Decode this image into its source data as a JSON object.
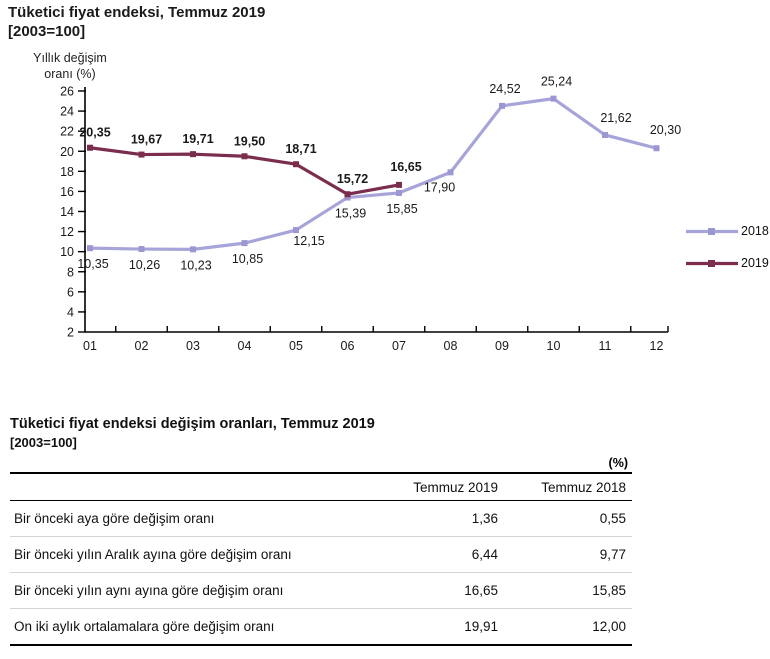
{
  "chart_data": {
    "type": "line",
    "title": "Tüketici fiyat endeksi, Temmuz 2019",
    "subtitle": "[2003=100]",
    "ylabel_lines": [
      "Yıllık  değişim",
      "oranı (%)"
    ],
    "x": [
      "01",
      "02",
      "03",
      "04",
      "05",
      "06",
      "07",
      "08",
      "09",
      "10",
      "11",
      "12"
    ],
    "series": [
      {
        "name": "2018",
        "color": "#a7a4d9",
        "marker_color": "#9b97d0",
        "values": [
          10.35,
          10.26,
          10.23,
          10.85,
          12.15,
          15.39,
          15.85,
          17.9,
          24.52,
          25.24,
          21.62,
          20.3
        ],
        "label_positions": [
          "below",
          "below",
          "below",
          "below",
          "below",
          "below",
          "below",
          "below",
          "above",
          "above",
          "above",
          "above"
        ],
        "bold_labels": false
      },
      {
        "name": "2019",
        "color": "#7b2d4e",
        "marker_color": "#7b2d4e",
        "values": [
          20.35,
          19.67,
          19.71,
          19.5,
          18.71,
          15.72,
          16.65
        ],
        "label_positions": [
          "above",
          "above",
          "above",
          "above",
          "above",
          "above",
          "above"
        ],
        "bold_labels": true
      }
    ],
    "ylim": [
      2,
      26
    ],
    "ytick_step": 2,
    "decimal_separator": ",",
    "grid": false,
    "legend_position": "right"
  },
  "table_section": {
    "title": "Tüketici fiyat endeksi değişim oranları, Temmuz 2019",
    "subtitle": "[2003=100]",
    "unit_label": "(%)",
    "columns": [
      "Temmuz 2019",
      "Temmuz 2018"
    ],
    "rows": [
      {
        "label": "Bir önceki aya göre değişim oranı",
        "v2019": "1,36",
        "v2018": "0,55"
      },
      {
        "label": "Bir önceki yılın Aralık ayına göre değişim oranı",
        "v2019": "6,44",
        "v2018": "9,77"
      },
      {
        "label": "Bir önceki yılın aynı ayına göre değişim oranı",
        "v2019": "16,65",
        "v2018": "15,85"
      },
      {
        "label": "On iki aylık ortalamalara göre değişim oranı",
        "v2019": "19,91",
        "v2018": "12,00"
      }
    ]
  }
}
